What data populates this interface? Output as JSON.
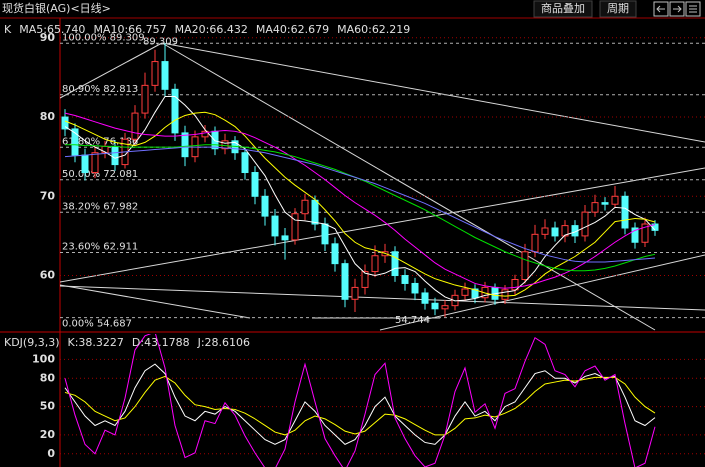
{
  "header": {
    "title": "现货白银(AG)<日线>",
    "buttons": [
      "商品叠加",
      "周期"
    ]
  },
  "chart_data": [
    {
      "type": "candlestick",
      "legend_label": "K",
      "open": [
        80.0,
        78.5,
        75.2,
        73.0,
        75.5,
        76.3,
        74.0,
        77.2,
        80.5,
        84.0,
        87.0,
        83.5,
        78.0,
        75.0,
        77.5,
        78.2,
        76.0,
        77.0,
        75.5,
        73.0,
        70.0,
        67.5,
        65.0,
        64.5,
        67.8,
        69.5,
        66.5,
        64.0,
        61.5,
        57.0,
        58.5,
        60.5,
        62.5,
        63.0,
        60.0,
        59.0,
        57.8,
        56.5,
        55.8,
        56.2,
        57.5,
        58.3,
        57.2,
        58.5,
        57.0,
        58.2,
        59.5,
        63.0,
        65.2,
        66.0,
        65.0,
        66.3,
        65.0,
        68.0,
        69.2,
        69.0,
        70.0,
        66.0,
        64.2,
        66.5
      ],
      "high": [
        81.0,
        79.2,
        76.0,
        76.4,
        77.0,
        77.1,
        78.0,
        81.5,
        85.6,
        88.5,
        89.309,
        84.2,
        78.9,
        78.3,
        79.0,
        78.8,
        77.9,
        77.6,
        76.2,
        73.8,
        70.9,
        68.4,
        66.0,
        68.5,
        70.3,
        70.1,
        67.3,
        64.8,
        62.0,
        59.6,
        61.4,
        63.8,
        64.0,
        63.7,
        60.8,
        59.7,
        58.4,
        57.2,
        56.9,
        58.2,
        59.1,
        58.9,
        59.2,
        59.0,
        58.8,
        60.1,
        64.0,
        66.4,
        67.1,
        66.8,
        67.0,
        67.0,
        68.9,
        70.2,
        69.9,
        71.3,
        70.6,
        66.7,
        67.3,
        67.0
      ],
      "low": [
        77.6,
        74.3,
        72.0,
        72.3,
        74.8,
        73.2,
        73.5,
        76.5,
        79.8,
        83.2,
        82.6,
        77.0,
        73.8,
        74.3,
        76.8,
        75.2,
        75.3,
        74.6,
        72.1,
        69.0,
        66.3,
        63.8,
        62.0,
        63.9,
        67.0,
        65.7,
        63.1,
        60.5,
        56.0,
        55.4,
        57.6,
        59.8,
        61.6,
        59.2,
        58.1,
        56.9,
        55.7,
        55.0,
        54.744,
        55.6,
        56.8,
        56.5,
        56.6,
        56.3,
        56.4,
        57.5,
        59.0,
        62.3,
        64.6,
        64.3,
        64.2,
        64.1,
        64.3,
        67.4,
        68.2,
        68.5,
        65.2,
        63.4,
        63.6,
        65.0
      ],
      "close": [
        78.5,
        75.2,
        73.0,
        75.5,
        76.3,
        74.0,
        77.2,
        80.5,
        84.0,
        87.0,
        83.5,
        78.0,
        75.0,
        77.5,
        78.2,
        76.0,
        77.0,
        75.5,
        73.0,
        70.0,
        67.5,
        65.0,
        64.5,
        67.8,
        69.5,
        66.5,
        64.0,
        61.5,
        57.0,
        58.5,
        60.5,
        62.5,
        63.0,
        60.0,
        59.0,
        57.8,
        56.5,
        55.8,
        56.2,
        57.5,
        58.3,
        57.2,
        58.5,
        57.0,
        58.2,
        59.5,
        63.0,
        65.2,
        66.0,
        65.0,
        66.3,
        65.0,
        68.0,
        69.2,
        69.0,
        70.0,
        66.0,
        64.2,
        66.5,
        65.7
      ],
      "up_color": "#ff3c3c",
      "down_color": "#54fcfc",
      "series": [
        {
          "name": "MA5:65.740",
          "color": "#ffffff",
          "values": [
            78.8,
            78.0,
            77.0,
            76.2,
            75.6,
            74.8,
            75.2,
            76.7,
            78.4,
            80.6,
            82.6,
            82.6,
            81.5,
            80.2,
            78.4,
            77.0,
            76.7,
            76.8,
            76.0,
            74.3,
            72.6,
            70.2,
            68.0,
            67.0,
            66.9,
            66.7,
            66.5,
            65.9,
            63.7,
            61.5,
            60.3,
            60.0,
            60.3,
            60.9,
            61.0,
            60.5,
            59.3,
            58.2,
            57.3,
            56.8,
            56.9,
            57.1,
            57.5,
            57.7,
            57.9,
            58.1,
            59.2,
            60.6,
            62.4,
            63.8,
            65.1,
            65.5,
            66.1,
            66.7,
            67.5,
            68.6,
            68.5,
            67.7,
            67.1,
            65.74
          ]
        },
        {
          "name": "MA10:66.757",
          "color": "#ffff00",
          "values": [
            79.5,
            79.0,
            78.4,
            77.8,
            77.2,
            76.8,
            76.6,
            76.4,
            76.8,
            77.6,
            78.7,
            79.6,
            80.2,
            80.5,
            80.6,
            80.3,
            79.6,
            78.8,
            77.6,
            76.2,
            74.8,
            73.6,
            72.4,
            71.4,
            70.5,
            69.6,
            68.3,
            66.9,
            65.3,
            64.2,
            63.5,
            63.2,
            62.8,
            62.3,
            61.6,
            60.9,
            60.2,
            59.6,
            59.2,
            58.8,
            58.5,
            58.2,
            57.8,
            57.5,
            57.4,
            57.5,
            58.2,
            59.1,
            60.2,
            61.0,
            61.7,
            62.4,
            63.3,
            64.2,
            65.5,
            66.8,
            67.0,
            67.2,
            67.1,
            66.757
          ]
        },
        {
          "name": "MA20:66.432",
          "color": "#ff00ff",
          "values": [
            80.5,
            80.2,
            79.8,
            79.4,
            79.0,
            78.6,
            78.3,
            78.0,
            77.8,
            77.7,
            77.6,
            77.6,
            77.7,
            77.8,
            78.0,
            78.2,
            78.3,
            78.2,
            77.9,
            77.4,
            76.8,
            76.2,
            75.5,
            74.7,
            73.9,
            73.0,
            72.1,
            71.1,
            70.1,
            69.2,
            68.4,
            67.6,
            66.7,
            65.7,
            64.6,
            63.6,
            62.6,
            61.6,
            60.8,
            60.2,
            59.6,
            59.0,
            58.7,
            58.5,
            58.4,
            58.5,
            58.7,
            59.0,
            59.4,
            59.8,
            60.3,
            60.9,
            61.6,
            62.4,
            63.3,
            64.2,
            65.0,
            65.7,
            66.1,
            66.432
          ]
        },
        {
          "name": "MA40:62.679",
          "color": "#00e000",
          "values": [
            76.5,
            76.5,
            76.4,
            76.4,
            76.3,
            76.3,
            76.2,
            76.2,
            76.2,
            76.2,
            76.2,
            76.2,
            76.3,
            76.4,
            76.5,
            76.5,
            76.4,
            76.3,
            76.2,
            76.0,
            75.8,
            75.6,
            75.3,
            75.0,
            74.6,
            74.2,
            73.8,
            73.4,
            72.9,
            72.4,
            71.9,
            71.3,
            70.7,
            70.1,
            69.5,
            68.9,
            68.3,
            67.6,
            66.9,
            66.2,
            65.5,
            64.8,
            64.2,
            63.6,
            63.0,
            62.5,
            62.0,
            61.6,
            61.2,
            60.9,
            60.7,
            60.6,
            60.6,
            60.7,
            60.9,
            61.2,
            61.6,
            62.0,
            62.4,
            62.679
          ]
        },
        {
          "name": "MA60:62.219",
          "color": "#7070ff",
          "values": [
            75.0,
            75.1,
            75.2,
            75.3,
            75.4,
            75.5,
            75.6,
            75.7,
            75.8,
            75.9,
            76.0,
            76.1,
            76.2,
            76.2,
            76.2,
            76.2,
            76.1,
            76.0,
            75.9,
            75.7,
            75.5,
            75.2,
            74.9,
            74.6,
            74.3,
            74.0,
            73.6,
            73.2,
            72.8,
            72.4,
            72.0,
            71.6,
            71.1,
            70.6,
            70.1,
            69.6,
            69.1,
            68.5,
            67.9,
            67.3,
            66.7,
            66.1,
            65.5,
            64.9,
            64.4,
            63.9,
            63.4,
            63.0,
            62.6,
            62.3,
            62.0,
            61.8,
            61.7,
            61.7,
            61.7,
            61.8,
            61.9,
            62.0,
            62.1,
            62.219
          ]
        }
      ],
      "fib_levels": [
        {
          "label": "100.00% 89.309",
          "value": 89.309
        },
        {
          "label": "80.90% 82.813",
          "value": 82.813
        },
        {
          "label": "61.80% 76.186",
          "value": 76.186
        },
        {
          "label": "50.00% 72.081",
          "value": 72.081
        },
        {
          "label": "38.20% 67.982",
          "value": 67.982
        },
        {
          "label": "23.60% 62.911",
          "value": 62.911
        },
        {
          "label": "0.00% 54.687",
          "value": 54.687
        }
      ],
      "high_label": 89.309,
      "low_label": 54.744,
      "ylim": [
        53,
        92.5
      ],
      "yticks": [
        60,
        70,
        80,
        90
      ],
      "grid": true
    },
    {
      "type": "line",
      "title": "KDJ(9,3,3)",
      "series": [
        {
          "name": "K:38.3227",
          "color": "#ffffff",
          "values": [
            70,
            55,
            40,
            30,
            35,
            30,
            45,
            70,
            88,
            95,
            85,
            60,
            40,
            35,
            45,
            42,
            50,
            45,
            35,
            25,
            15,
            10,
            15,
            35,
            55,
            45,
            30,
            20,
            10,
            15,
            30,
            50,
            60,
            40,
            30,
            20,
            12,
            10,
            20,
            40,
            55,
            40,
            45,
            35,
            50,
            55,
            70,
            85,
            88,
            80,
            80,
            75,
            82,
            85,
            80,
            82,
            60,
            35,
            30,
            38.3227
          ]
        },
        {
          "name": "D:43.1788",
          "color": "#ffff00",
          "values": [
            65,
            62,
            55,
            45,
            40,
            35,
            38,
            50,
            65,
            78,
            82,
            75,
            62,
            52,
            50,
            47,
            48,
            47,
            43,
            37,
            30,
            23,
            20,
            25,
            35,
            40,
            37,
            31,
            24,
            21,
            24,
            33,
            42,
            41,
            37,
            31,
            25,
            20,
            20,
            27,
            37,
            38,
            41,
            39,
            43,
            48,
            56,
            66,
            74,
            76,
            78,
            77,
            79,
            81,
            81,
            81,
            74,
            60,
            50,
            43.1788
          ]
        },
        {
          "name": "J:28.6106",
          "color": "#ff00ff",
          "values": [
            80,
            41,
            10,
            0,
            25,
            20,
            59,
            110,
            125,
            129,
            91,
            30,
            -4,
            1,
            35,
            32,
            54,
            41,
            19,
            1,
            -15,
            -16,
            5,
            55,
            95,
            55,
            16,
            -2,
            -18,
            3,
            42,
            84,
            96,
            38,
            16,
            -2,
            -14,
            -10,
            20,
            66,
            91,
            44,
            53,
            27,
            64,
            69,
            98,
            123,
            116,
            88,
            84,
            71,
            88,
            93,
            78,
            84,
            32,
            -15,
            -10,
            28.6106
          ]
        }
      ],
      "ylim": [
        -14,
        128
      ],
      "yticks": [
        0,
        20,
        50,
        80,
        100
      ],
      "grid": true
    }
  ]
}
